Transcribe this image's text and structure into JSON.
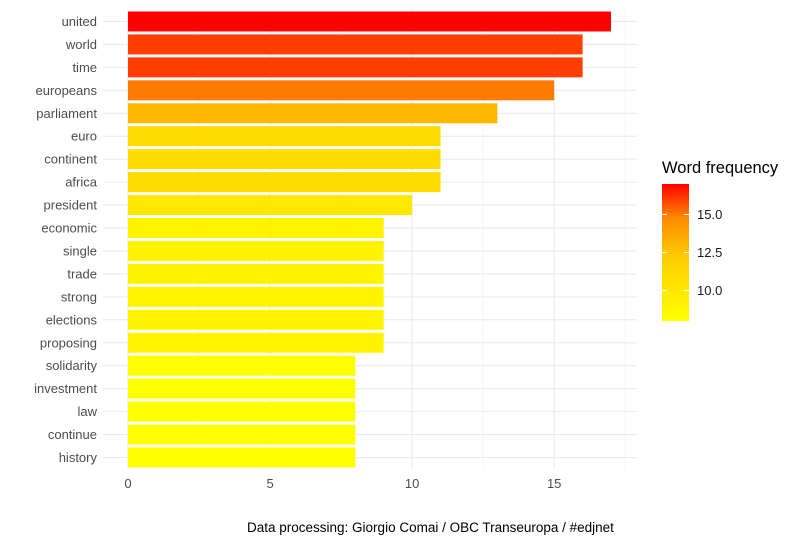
{
  "chart_data": {
    "type": "bar",
    "orientation": "horizontal",
    "categories": [
      "united",
      "world",
      "time",
      "europeans",
      "parliament",
      "euro",
      "continent",
      "africa",
      "president",
      "economic",
      "single",
      "trade",
      "strong",
      "elections",
      "proposing",
      "solidarity",
      "investment",
      "law",
      "continue",
      "history"
    ],
    "values": [
      17,
      16,
      16,
      15,
      13,
      11,
      11,
      11,
      10,
      9,
      9,
      9,
      9,
      9,
      9,
      8,
      8,
      8,
      8,
      8
    ],
    "xlim": [
      0,
      17.5
    ],
    "xticks": [
      0,
      5,
      10,
      15
    ],
    "grid": true,
    "legend": {
      "title": "Word frequency",
      "placement": "right",
      "min": 8,
      "max": 17,
      "ticks": [
        10.0,
        12.5,
        15.0
      ],
      "tick_labels": [
        "10.0",
        "12.5",
        "15.0"
      ],
      "colors": {
        "low": "#ffff00",
        "mid": "#ffc800",
        "high": "#ff0000"
      }
    },
    "caption": "Data processing:  Giorgio Comai / OBC Transeuropa / #edjnet"
  }
}
